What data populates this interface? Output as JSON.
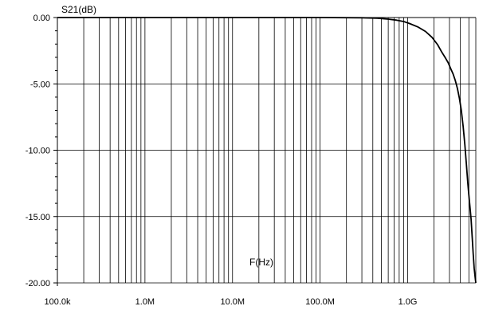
{
  "chart_data": {
    "type": "line",
    "ylabel": "S21(dB)",
    "xlabel": "F(Hz)",
    "x_scale": "log",
    "xlim": [
      100000,
      6000000000
    ],
    "ylim": [
      -20,
      0
    ],
    "grid": true,
    "x_ticks": [
      {
        "value": 100000,
        "label": "100.0k"
      },
      {
        "value": 1000000,
        "label": "1.0M"
      },
      {
        "value": 10000000,
        "label": "10.0M"
      },
      {
        "value": 100000000,
        "label": "100.0M"
      },
      {
        "value": 1000000000,
        "label": "1.0G"
      }
    ],
    "y_ticks": [
      {
        "value": 0,
        "label": "0.00"
      },
      {
        "value": -5,
        "label": "-5.00"
      },
      {
        "value": -10,
        "label": "-10.00"
      },
      {
        "value": -15,
        "label": "-15.00"
      },
      {
        "value": -20,
        "label": "-20.00"
      }
    ],
    "line_color": "#000000",
    "series": [
      {
        "x": [
          100000,
          10000000,
          100000000,
          300000000,
          450000000,
          600000000,
          750000000,
          900000000,
          1050000000,
          1300000000,
          1600000000,
          1900000000,
          2200000000,
          2450000000,
          2700000000,
          2900000000,
          3100000000,
          3300000000,
          3500000000,
          3700000000,
          3900000000,
          4100000000,
          4300000000,
          4500000000,
          4700000000,
          4850000000,
          5000000000,
          5150000000,
          5300000000,
          5450000000,
          5600000000,
          5750000000,
          5900000000,
          6000000000
        ],
        "y": [
          0.0,
          0.0,
          0.0,
          -0.02,
          -0.05,
          -0.12,
          -0.2,
          -0.3,
          -0.45,
          -0.7,
          -1.05,
          -1.5,
          -2.05,
          -2.6,
          -3.05,
          -3.4,
          -3.85,
          -4.25,
          -4.75,
          -5.35,
          -6.1,
          -7.0,
          -8.2,
          -9.6,
          -11.2,
          -12.4,
          -13.4,
          -14.3,
          -15.2,
          -16.5,
          -17.8,
          -18.9,
          -19.6,
          -20.0
        ]
      }
    ]
  }
}
